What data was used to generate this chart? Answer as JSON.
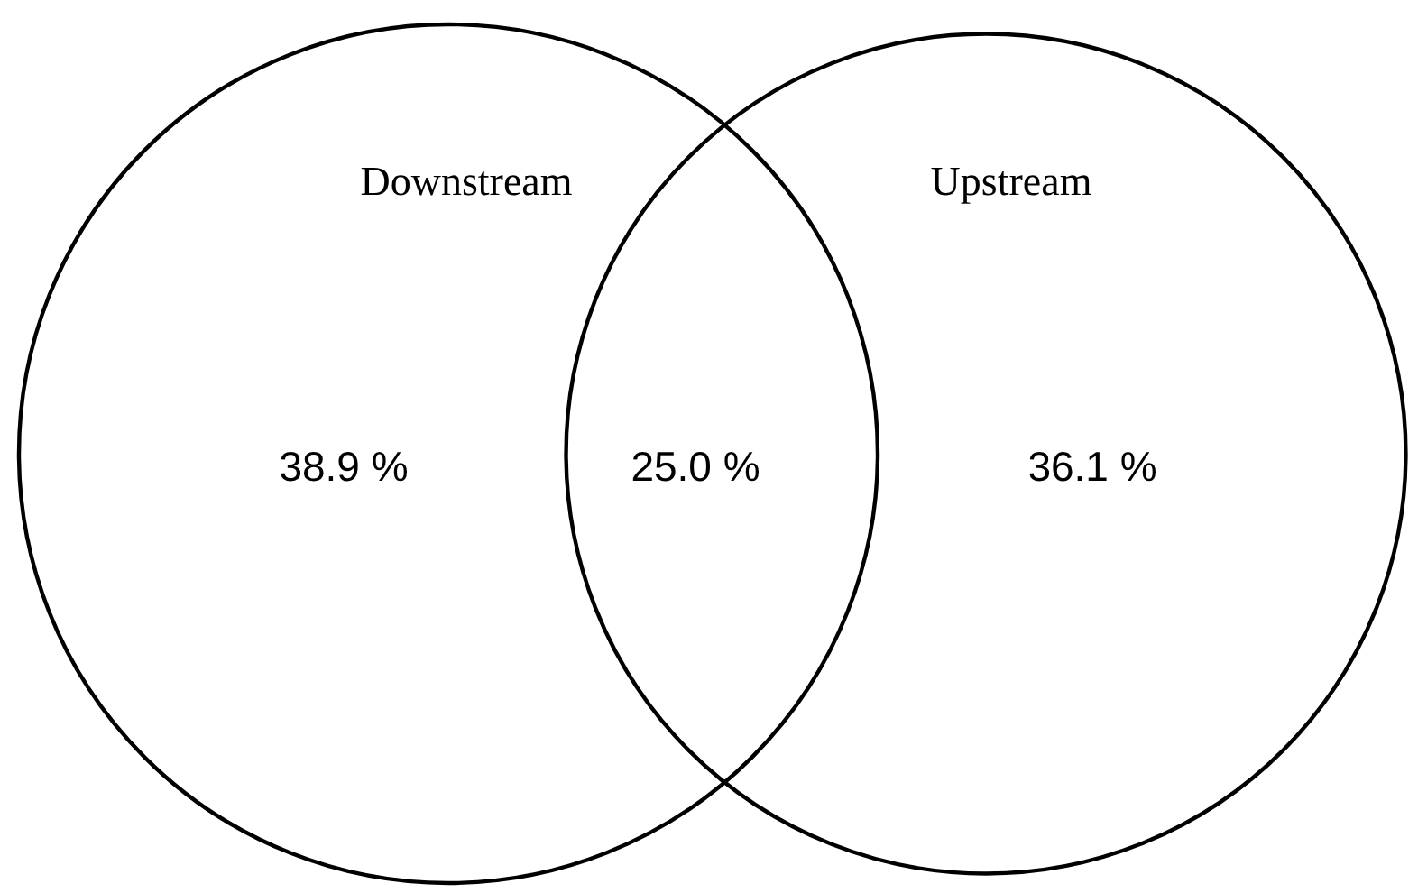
{
  "chart_data": {
    "type": "other",
    "categories": [
      "Downstream",
      null,
      "Upstream"
    ],
    "values": [
      38.9,
      25.0,
      36.1
    ],
    "value_labels": [
      "38.9 %",
      "25.0 %",
      "36.1 %"
    ]
  }
}
